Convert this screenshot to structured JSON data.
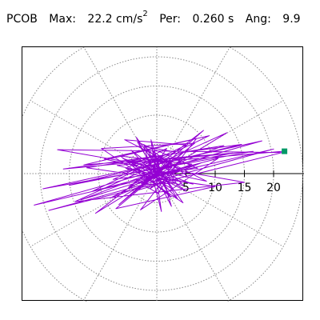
{
  "header": {
    "station": "PCOB",
    "max_label": "Max:",
    "max_value": "22.2",
    "max_unit": "cm/s",
    "max_unit_sup": "2",
    "per_label": "Per:",
    "per_value": "0.260 s",
    "ang_label": "Ang:",
    "ang_value": "9.9"
  },
  "colors": {
    "trace": "#9400d3",
    "marker": "#009966",
    "grid": "#888888",
    "axis": "#000000"
  },
  "chart_data": {
    "type": "polar-particle-motion",
    "radial_ticks": [
      "5",
      "10",
      "15",
      "20"
    ],
    "radial_values": [
      5,
      10,
      15,
      20
    ],
    "rings": [
      5,
      10,
      15,
      20,
      25
    ],
    "spokes_deg": [
      0,
      30,
      60,
      90,
      120,
      150,
      180,
      210,
      240,
      270,
      300,
      330
    ],
    "max_value": 22.2,
    "angle_deg": 9.9,
    "trace_points": [
      [
        -2.1,
        1.5
      ],
      [
        1.8,
        -0.9
      ],
      [
        -1.2,
        -2.6
      ],
      [
        2.6,
        1.1
      ],
      [
        -3.0,
        0.4
      ],
      [
        0.5,
        2.9
      ],
      [
        3.3,
        -1.6
      ],
      [
        -2.2,
        -1.9
      ],
      [
        1.1,
        3.1
      ],
      [
        -4.1,
        1.2
      ],
      [
        2.8,
        -2.7
      ],
      [
        -1.5,
        3.3
      ],
      [
        4.4,
        0.6
      ],
      [
        -3.6,
        -1.1
      ],
      [
        0.2,
        -3.4
      ],
      [
        3.9,
        2.3
      ],
      [
        -4.5,
        2.0
      ],
      [
        2.0,
        -3.6
      ],
      [
        -0.6,
        3.8
      ],
      [
        5.2,
        -0.4
      ],
      [
        -3.1,
        -2.8
      ],
      [
        1.7,
        4.3
      ],
      [
        -5.3,
        0.9
      ],
      [
        4.6,
        -2.1
      ],
      [
        -2.0,
        4.6
      ],
      [
        3.2,
        3.7
      ],
      [
        -4.8,
        -2.3
      ],
      [
        6.0,
        1.6
      ],
      [
        -6.2,
        3.0
      ],
      [
        2.4,
        -4.0
      ],
      [
        -3.3,
        5.4
      ],
      [
        7.0,
        0.9
      ],
      [
        -7.5,
        -1.0
      ],
      [
        5.1,
        4.9
      ],
      [
        -5.5,
        5.8
      ],
      [
        8.5,
        -1.3
      ],
      [
        -9.0,
        2.5
      ],
      [
        6.8,
        6.0
      ],
      [
        -2.8,
        -6.2
      ],
      [
        10.5,
        2.6
      ],
      [
        -11.0,
        -3.0
      ],
      [
        9.0,
        6.5
      ],
      [
        -12.5,
        1.5
      ],
      [
        13.0,
        3.5
      ],
      [
        -15.0,
        -2.0
      ],
      [
        14.5,
        5.0
      ],
      [
        -16.0,
        0.8
      ],
      [
        16.5,
        3.8
      ],
      [
        -19.5,
        -2.6
      ],
      [
        18.0,
        5.6
      ],
      [
        -21.0,
        -5.4
      ],
      [
        20.0,
        4.2
      ],
      [
        -18.5,
        -6.3
      ],
      [
        21.5,
        3.6
      ],
      [
        -17.0,
        4.1
      ],
      [
        15.0,
        -1.5
      ],
      [
        -14.0,
        -4.8
      ],
      [
        12.0,
        7.0
      ],
      [
        -10.5,
        -6.8
      ],
      [
        8.0,
        7.4
      ],
      [
        -6.5,
        -5.3
      ],
      [
        5.5,
        4.4
      ],
      [
        -4.0,
        -3.2
      ],
      [
        3.0,
        2.6
      ],
      [
        -2.5,
        -1.6
      ],
      [
        1.5,
        1.2
      ],
      [
        0.0,
        0.0
      ],
      [
        -8.0,
        -4.2
      ],
      [
        7.5,
        1.8
      ],
      [
        -13.0,
        -4.5
      ],
      [
        11.5,
        4.8
      ],
      [
        -12.0,
        1.0
      ],
      [
        10.0,
        -2.2
      ],
      [
        -7.0,
        -6.0
      ],
      [
        6.5,
        5.2
      ],
      [
        -9.5,
        4.3
      ],
      [
        4.5,
        -5.0
      ],
      [
        -3.5,
        6.2
      ],
      [
        2.5,
        -5.6
      ],
      [
        -1.0,
        5.8
      ],
      [
        0.8,
        -6.5
      ],
      [
        -2.2,
        5.0
      ],
      [
        3.6,
        -4.4
      ],
      [
        -4.4,
        4.0
      ],
      [
        5.0,
        -3.0
      ],
      [
        -5.8,
        2.6
      ],
      [
        6.2,
        -1.8
      ],
      [
        -6.8,
        1.4
      ],
      [
        22.2,
        3.87
      ]
    ]
  }
}
